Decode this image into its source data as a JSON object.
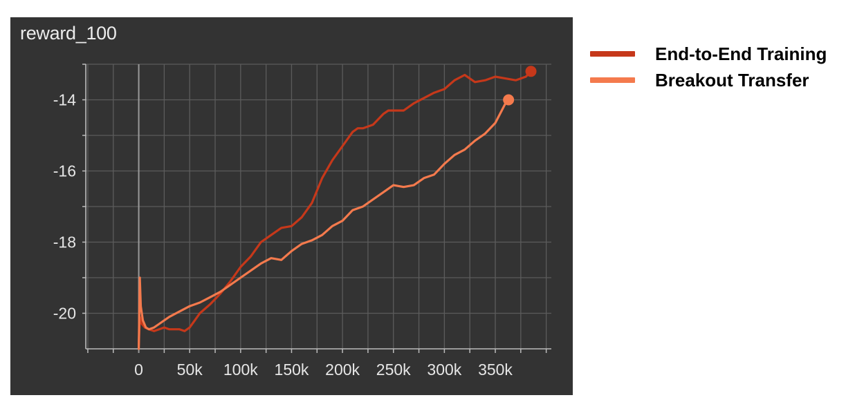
{
  "chart_data": {
    "type": "line",
    "title": "reward_100",
    "xlabel": "",
    "ylabel": "",
    "xlim": [
      -52000,
      405000
    ],
    "ylim": [
      -21,
      -13
    ],
    "x_ticks": [
      0,
      50000,
      100000,
      150000,
      200000,
      250000,
      300000,
      350000
    ],
    "x_tick_labels": [
      "0",
      "50k",
      "100k",
      "150k",
      "200k",
      "250k",
      "300k",
      "350k"
    ],
    "y_ticks": [
      -20,
      -18,
      -16,
      -14
    ],
    "y_tick_labels": [
      "-20",
      "-18",
      "-16",
      "-14"
    ],
    "grid": true,
    "legend_position": "right-outside",
    "series": [
      {
        "name": "End-to-End Training",
        "color": "#c6381a",
        "end_marker": true,
        "x": [
          0,
          1000,
          3000,
          6000,
          10000,
          15000,
          20000,
          25000,
          30000,
          35000,
          40000,
          45000,
          50000,
          55000,
          60000,
          70000,
          80000,
          90000,
          100000,
          110000,
          120000,
          130000,
          140000,
          150000,
          160000,
          170000,
          180000,
          190000,
          200000,
          210000,
          215000,
          220000,
          230000,
          240000,
          245000,
          250000,
          260000,
          270000,
          280000,
          290000,
          300000,
          310000,
          320000,
          330000,
          340000,
          350000,
          360000,
          370000,
          380000,
          385000
        ],
        "y": [
          -20.9,
          -20.1,
          -20.3,
          -20.4,
          -20.45,
          -20.5,
          -20.45,
          -20.4,
          -20.45,
          -20.45,
          -20.45,
          -20.5,
          -20.4,
          -20.2,
          -20.0,
          -19.75,
          -19.45,
          -19.1,
          -18.7,
          -18.4,
          -18.0,
          -17.8,
          -17.6,
          -17.55,
          -17.3,
          -16.9,
          -16.2,
          -15.7,
          -15.3,
          -14.9,
          -14.8,
          -14.8,
          -14.7,
          -14.4,
          -14.3,
          -14.3,
          -14.3,
          -14.1,
          -13.95,
          -13.8,
          -13.7,
          -13.45,
          -13.3,
          -13.5,
          -13.45,
          -13.35,
          -13.4,
          -13.45,
          -13.35,
          -13.2
        ]
      },
      {
        "name": "Breakout Transfer",
        "color": "#f47a4d",
        "end_marker": true,
        "x": [
          0,
          1000,
          2000,
          4000,
          7000,
          10000,
          15000,
          20000,
          25000,
          30000,
          40000,
          50000,
          60000,
          70000,
          80000,
          90000,
          100000,
          110000,
          120000,
          130000,
          140000,
          150000,
          160000,
          170000,
          180000,
          190000,
          200000,
          210000,
          220000,
          230000,
          240000,
          250000,
          260000,
          270000,
          280000,
          290000,
          300000,
          310000,
          320000,
          330000,
          340000,
          350000,
          360000,
          363000
        ],
        "y": [
          -21.0,
          -19.0,
          -19.8,
          -20.2,
          -20.4,
          -20.45,
          -20.4,
          -20.3,
          -20.2,
          -20.1,
          -19.95,
          -19.8,
          -19.7,
          -19.55,
          -19.4,
          -19.2,
          -19.0,
          -18.8,
          -18.6,
          -18.45,
          -18.5,
          -18.25,
          -18.05,
          -17.95,
          -17.8,
          -17.55,
          -17.4,
          -17.1,
          -17.0,
          -16.8,
          -16.6,
          -16.4,
          -16.45,
          -16.4,
          -16.2,
          -16.1,
          -15.8,
          -15.55,
          -15.4,
          -15.15,
          -14.95,
          -14.65,
          -14.1,
          -14.0
        ]
      }
    ]
  }
}
